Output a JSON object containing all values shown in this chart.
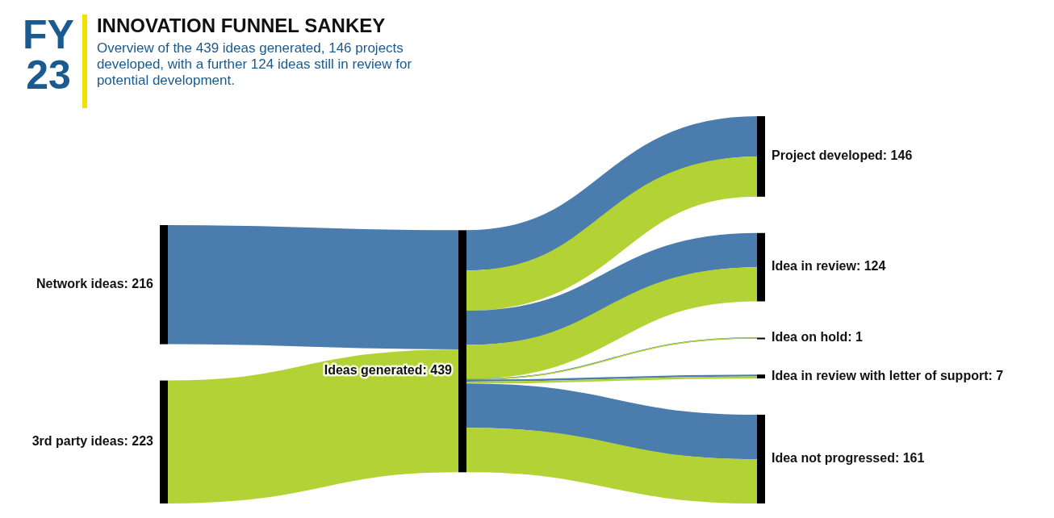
{
  "chart_data": {
    "type": "other",
    "title": "INNOVATION FUNNEL SANKEY",
    "subtitle": "Overview of the 439 ideas generated, 146 projects developed, with a further 124 ideas still in review for potential development.",
    "annotations": [
      "FY 23"
    ],
    "categories": [
      "Network ideas",
      "3rd party ideas",
      "Ideas generated",
      "Project developed",
      "Idea in review",
      "Idea on hold",
      "Idea in review with letter of support",
      "Idea not progressed"
    ],
    "values": [
      216,
      223,
      439,
      146,
      124,
      1,
      7,
      161
    ],
    "color": "#000000",
    "colors": [
      "#4a7dad",
      "#b3d235",
      null,
      null,
      null,
      null,
      null,
      null
    ],
    "value_labels": [
      ": 216",
      ": 223",
      ": 439",
      ": 146",
      ": 124",
      ": 1",
      ": 7",
      ": 161"
    ]
  }
}
